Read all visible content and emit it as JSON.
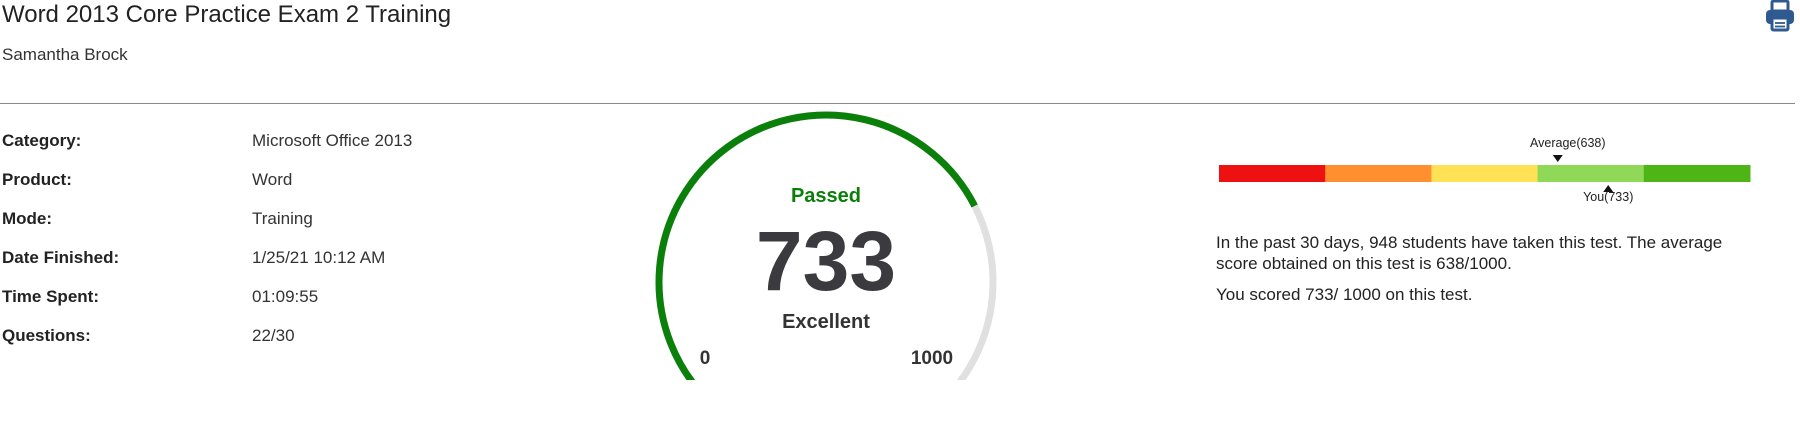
{
  "header": {
    "title": "Word 2013 Core Practice Exam 2 Training",
    "student_name": "Samantha Brock",
    "print_icon": "printer-icon"
  },
  "details": [
    {
      "label": "Category:",
      "value": "Microsoft Office 2013"
    },
    {
      "label": "Product:",
      "value": "Word"
    },
    {
      "label": "Mode:",
      "value": "Training"
    },
    {
      "label": "Date Finished:",
      "value": "1/25/21 10:12 AM"
    },
    {
      "label": "Time Spent:",
      "value": "01:09:55"
    },
    {
      "label": "Questions:",
      "value": "22/30"
    }
  ],
  "score_gauge": {
    "status": "Passed",
    "score": "733",
    "rating": "Excellent",
    "min_label": "0",
    "max_label": "1000",
    "score_value": 733,
    "min_value": 0,
    "max_value": 1000,
    "status_color": "#0a7f0a",
    "track_color": "#e0e0e0",
    "fill_color": "#0a7f0a"
  },
  "distribution": {
    "average_label": "Average(638)",
    "you_label": "You(733)",
    "average_value": 638,
    "you_value": 733,
    "min_value": 0,
    "max_value": 1000,
    "band_colors": [
      "#ee1111",
      "#ff8f2f",
      "#ffe155",
      "#90d858",
      "#4db515"
    ]
  },
  "summary": {
    "line1": "In the past 30 days, 948 students have taken this test. The average score obtained on this test is 638/1000.",
    "line2": "You scored 733/ 1000 on this test."
  }
}
